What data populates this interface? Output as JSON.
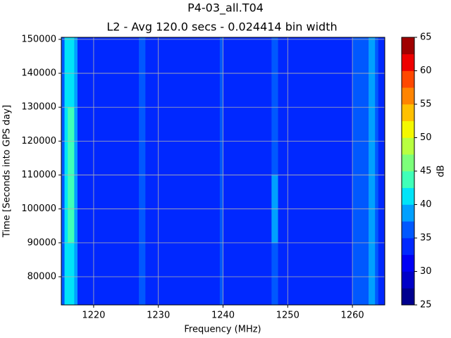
{
  "chart_data": {
    "type": "contourf",
    "title": "P4-03_all.T04",
    "subtitle": "L2 - Avg 120.0 secs - 0.024414 bin width",
    "x_label": "Frequency (MHz)",
    "y_label": "Time [Seconds into GPS day]",
    "colorbar_label": "dB",
    "xlim": [
      1215,
      1265
    ],
    "ylim": [
      71700,
      150600
    ],
    "xticks": [
      1220,
      1230,
      1240,
      1250,
      1260
    ],
    "yticks": [
      80000,
      90000,
      100000,
      110000,
      120000,
      130000,
      140000,
      150000
    ],
    "grid": true,
    "x_edges": [
      1215,
      1215.5,
      1216,
      1217,
      1217.5,
      1227,
      1228,
      1239.5,
      1240,
      1247.5,
      1248.5,
      1260,
      1262.5,
      1263.5,
      1264,
      1265
    ],
    "y_edges": [
      71700,
      90000,
      110000,
      130000,
      150600
    ],
    "z": [
      [
        37,
        40,
        42,
        38,
        34,
        36,
        34,
        35,
        34,
        37,
        34,
        36,
        39,
        36,
        34
      ],
      [
        37,
        41,
        43,
        38,
        34,
        36,
        34,
        35,
        34,
        38,
        34,
        36,
        39,
        36,
        34
      ],
      [
        37,
        41,
        43,
        38,
        34,
        36,
        34,
        35,
        34,
        37,
        34,
        36,
        39,
        36,
        34
      ],
      [
        37,
        40,
        42,
        38,
        34,
        36,
        34,
        35,
        34,
        36,
        34,
        36,
        39,
        36,
        34
      ]
    ],
    "levels": [
      25,
      27.5,
      30,
      32.5,
      35,
      37.5,
      40,
      42.5,
      45,
      47.5,
      50,
      52.5,
      55,
      57.5,
      60,
      62.5,
      65
    ],
    "colors": [
      "#00008f",
      "#0000c8",
      "#0000f5",
      "#0028ff",
      "#0058ff",
      "#00a0ff",
      "#00e4f8",
      "#40ffb8",
      "#7cff7a",
      "#b8ff40",
      "#f4f800",
      "#ffc000",
      "#ff8400",
      "#ff4800",
      "#ee0000",
      "#a00000"
    ],
    "cticks": [
      25,
      30,
      35,
      40,
      45,
      50,
      55,
      60,
      65
    ]
  }
}
